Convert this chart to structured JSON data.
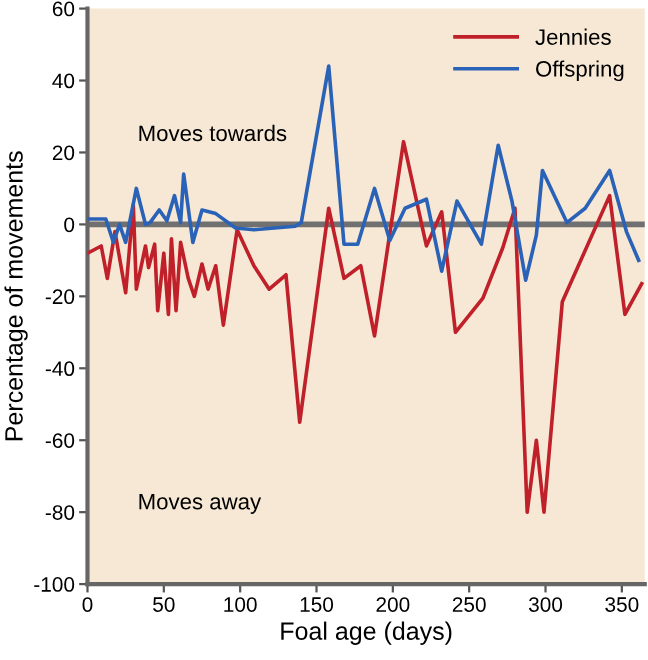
{
  "chart_data": {
    "type": "line",
    "xlabel": "Foal age (days)",
    "ylabel": "Percentage of movements",
    "xlim": [
      0,
      365
    ],
    "ylim": [
      -100,
      60
    ],
    "xticks": [
      0,
      50,
      100,
      150,
      200,
      250,
      300,
      350
    ],
    "yticks": [
      -100,
      -80,
      -60,
      -40,
      -20,
      0,
      20,
      40,
      60
    ],
    "grid": false,
    "legend": "top right",
    "marker": "none",
    "line_style": "solid",
    "ref_lines": [
      {
        "axis": "y",
        "value": 0,
        "color": "#707070"
      }
    ],
    "annotations": [
      "Moves towards",
      "Moves away"
    ],
    "series": [
      {
        "name": "Jennies",
        "color": "#c0202a",
        "x": [
          0,
          9,
          13,
          18,
          25,
          30,
          32,
          38,
          40,
          44,
          46,
          50,
          53,
          55,
          58,
          61,
          66,
          70,
          75,
          79,
          84,
          89,
          98,
          109,
          119,
          130,
          139,
          158,
          168,
          179,
          188,
          207,
          222,
          232,
          241,
          259,
          272,
          280,
          288,
          294,
          299,
          311,
          342,
          352,
          363
        ],
        "values": [
          -8,
          -6,
          -15,
          -2,
          -19,
          5.5,
          -18,
          -6,
          -12,
          -5.5,
          -24,
          -8,
          -25,
          -4,
          -24,
          -5,
          -15,
          -20,
          -11,
          -18,
          -11.5,
          -28,
          -1.5,
          -11.5,
          -18,
          -14,
          -55,
          4.5,
          -15,
          -11.5,
          -31,
          23,
          -6,
          3.5,
          -30,
          -20.5,
          -6.5,
          4.5,
          -80,
          -60,
          -80,
          -21.5,
          8,
          -25,
          -16.5
        ]
      },
      {
        "name": "Offspring",
        "color": "#2a62b8",
        "x": [
          0,
          12,
          17,
          21,
          25,
          32,
          38,
          41,
          47,
          52,
          57,
          61,
          63,
          69,
          75,
          84,
          97,
          109,
          136,
          140,
          158,
          168,
          177,
          188,
          198,
          208,
          222,
          232,
          242,
          258,
          269,
          278,
          287,
          294,
          298,
          314,
          326,
          342,
          353,
          361
        ],
        "values": [
          1.5,
          1.5,
          -5,
          0,
          -5,
          10,
          0,
          0.5,
          4,
          1,
          8,
          0.5,
          14,
          -5,
          4,
          3,
          -1,
          -1.5,
          -0.5,
          0.5,
          44,
          -5.5,
          -5.5,
          10,
          -4.5,
          4.5,
          7,
          -13,
          6.5,
          -5.5,
          22,
          6.5,
          -15.5,
          -3,
          15,
          0.5,
          4.5,
          15,
          -2,
          -10
        ]
      }
    ]
  }
}
